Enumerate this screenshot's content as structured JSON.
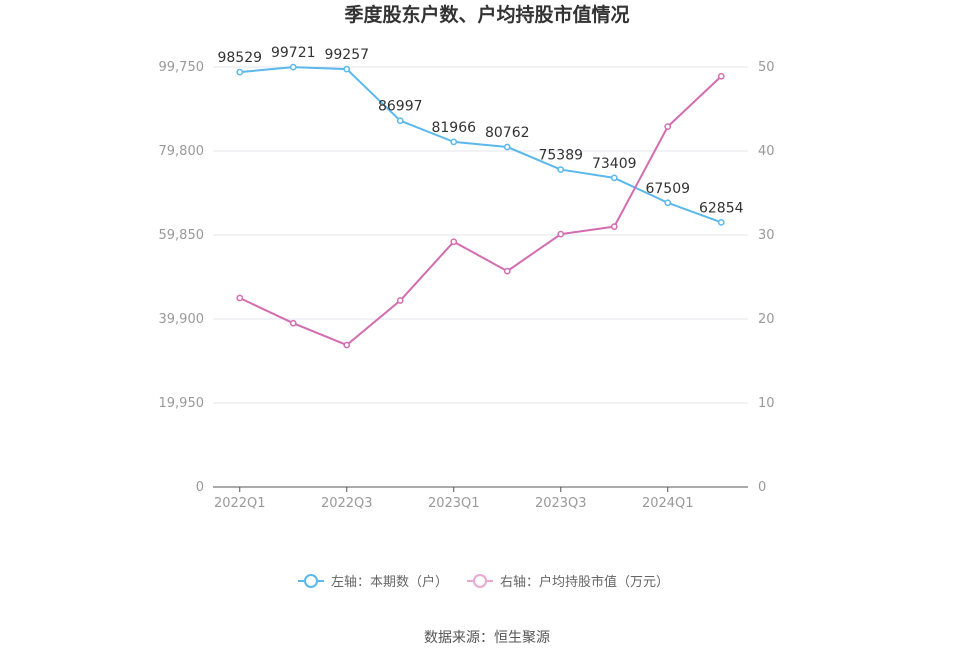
{
  "chart_data": {
    "type": "line",
    "title": "季度股东户数、户均持股市值情况",
    "categories": [
      "2022Q1",
      "2022Q2",
      "2022Q3",
      "2022Q4",
      "2023Q1",
      "2023Q2",
      "2023Q3",
      "2023Q4",
      "2024Q1",
      "2024Q2"
    ],
    "x_tick_labels": [
      "2022Q1",
      "2022Q3",
      "2023Q1",
      "2023Q3",
      "2024Q1"
    ],
    "y_left": {
      "ticks": [
        "0",
        "19,950",
        "39,900",
        "59,850",
        "79,800",
        "99,750"
      ],
      "range": [
        0,
        99750
      ]
    },
    "y_right": {
      "ticks": [
        "0",
        "10",
        "20",
        "30",
        "40",
        "50"
      ],
      "range": [
        0,
        50
      ]
    },
    "grid": true,
    "legend_position": "bottom",
    "series": [
      {
        "name": "左轴：本期数（户）",
        "axis": "left",
        "color": "#5ab8ec",
        "values": [
          98529,
          99721,
          99257,
          86997,
          81966,
          80762,
          75389,
          73409,
          67509,
          62854
        ],
        "labels": [
          "98529",
          "99721",
          "99257",
          "86997",
          "81966",
          "80762",
          "75389",
          "73409",
          "67509",
          "62854"
        ]
      },
      {
        "name": "右轴：户均持股市值（万元）",
        "axis": "right",
        "color": "#d36db0",
        "values": [
          22.5,
          19.5,
          16.9,
          22.2,
          29.2,
          25.7,
          30.1,
          31.0,
          42.9,
          48.9
        ]
      }
    ]
  },
  "footer": {
    "source": "数据来源：恒生聚源"
  }
}
